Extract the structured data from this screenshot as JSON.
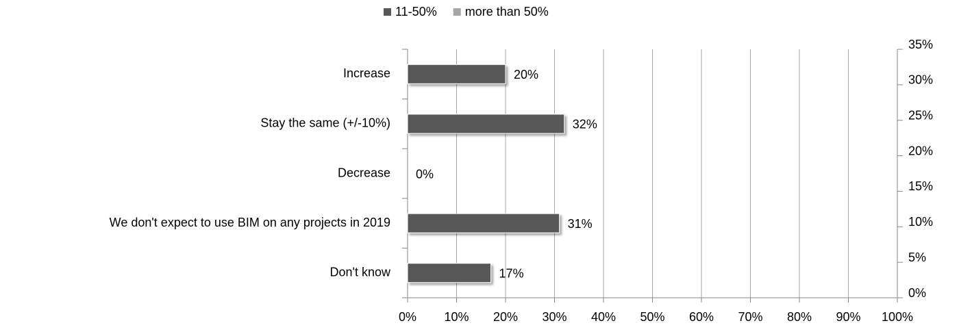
{
  "chart_data": {
    "type": "bar",
    "orientation": "horizontal",
    "categories": [
      "Increase",
      "Stay the same (+/-10%)",
      "Decrease",
      "We don't expect to use BIM on any projects in 2019",
      "Don't know"
    ],
    "series": [
      {
        "name": "11-50%",
        "color": "#595959",
        "values": [
          20,
          32,
          0,
          31,
          17
        ],
        "value_labels": [
          "20%",
          "32%",
          "0%",
          "31%",
          "17%"
        ]
      },
      {
        "name": "more than 50%",
        "color": "#a6a6a6",
        "values": [
          null,
          null,
          null,
          null,
          null
        ]
      }
    ],
    "xlim": [
      0,
      100
    ],
    "xticks": [
      {
        "value": 0,
        "label": "0%"
      },
      {
        "value": 10,
        "label": "10%"
      },
      {
        "value": 20,
        "label": "20%"
      },
      {
        "value": 30,
        "label": "30%"
      },
      {
        "value": 40,
        "label": "40%"
      },
      {
        "value": 50,
        "label": "50%"
      },
      {
        "value": 60,
        "label": "60%"
      },
      {
        "value": 70,
        "label": "70%"
      },
      {
        "value": 80,
        "label": "80%"
      },
      {
        "value": 90,
        "label": "90%"
      },
      {
        "value": 100,
        "label": "100%"
      }
    ],
    "y2lim": [
      0,
      35
    ],
    "y2ticks": [
      {
        "value": 0,
        "label": "0%"
      },
      {
        "value": 5,
        "label": "5%"
      },
      {
        "value": 10,
        "label": "10%"
      },
      {
        "value": 15,
        "label": "15%"
      },
      {
        "value": 20,
        "label": "20%"
      },
      {
        "value": 25,
        "label": "25%"
      },
      {
        "value": 30,
        "label": "30%"
      },
      {
        "value": 35,
        "label": "35%"
      }
    ],
    "grid": true,
    "legend": "top"
  }
}
